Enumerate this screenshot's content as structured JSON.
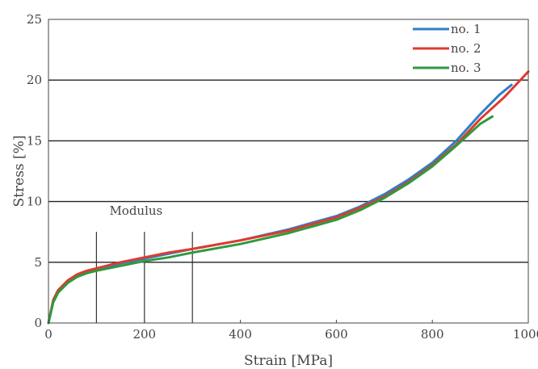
{
  "chart_data": {
    "type": "line",
    "xlabel": "Strain [MPa]",
    "ylabel": "Stress [%]",
    "xlim": [
      0,
      1000
    ],
    "ylim": [
      0,
      25
    ],
    "x_ticks": [
      "0",
      "200",
      "400",
      "600",
      "800",
      "1000"
    ],
    "y_ticks": [
      "0",
      "5",
      "10",
      "15",
      "20",
      "25"
    ],
    "grid": "horizontal",
    "legend_position": "top-right",
    "annotation": {
      "text": "Modulus",
      "marker_x": [
        100,
        200,
        300
      ],
      "marker_y_range": [
        0,
        7.5
      ]
    },
    "series": [
      {
        "name": "no. 1",
        "color": "#2f7fc4",
        "x": [
          0,
          10,
          20,
          40,
          60,
          80,
          100,
          150,
          200,
          250,
          300,
          400,
          500,
          600,
          650,
          700,
          750,
          800,
          850,
          900,
          940,
          965
        ],
        "y": [
          0,
          1.8,
          2.6,
          3.4,
          3.9,
          4.2,
          4.4,
          4.9,
          5.3,
          5.7,
          6.1,
          6.8,
          7.7,
          8.8,
          9.6,
          10.6,
          11.8,
          13.2,
          15.0,
          17.2,
          18.8,
          19.6
        ]
      },
      {
        "name": "no. 2",
        "color": "#e03a2f",
        "x": [
          0,
          10,
          20,
          40,
          60,
          80,
          100,
          150,
          200,
          250,
          300,
          400,
          500,
          600,
          650,
          700,
          750,
          800,
          850,
          900,
          950,
          1000
        ],
        "y": [
          0,
          1.9,
          2.7,
          3.5,
          4.0,
          4.3,
          4.5,
          5.0,
          5.4,
          5.8,
          6.1,
          6.8,
          7.6,
          8.7,
          9.5,
          10.4,
          11.6,
          13.0,
          14.7,
          16.8,
          18.6,
          20.7
        ]
      },
      {
        "name": "no. 3",
        "color": "#2e9a3e",
        "x": [
          0,
          10,
          20,
          40,
          60,
          80,
          100,
          150,
          200,
          250,
          300,
          400,
          500,
          600,
          650,
          700,
          750,
          800,
          850,
          900,
          925
        ],
        "y": [
          0,
          1.7,
          2.5,
          3.3,
          3.8,
          4.1,
          4.3,
          4.7,
          5.1,
          5.4,
          5.8,
          6.5,
          7.4,
          8.5,
          9.3,
          10.3,
          11.5,
          12.9,
          14.6,
          16.4,
          17.0
        ]
      }
    ]
  }
}
